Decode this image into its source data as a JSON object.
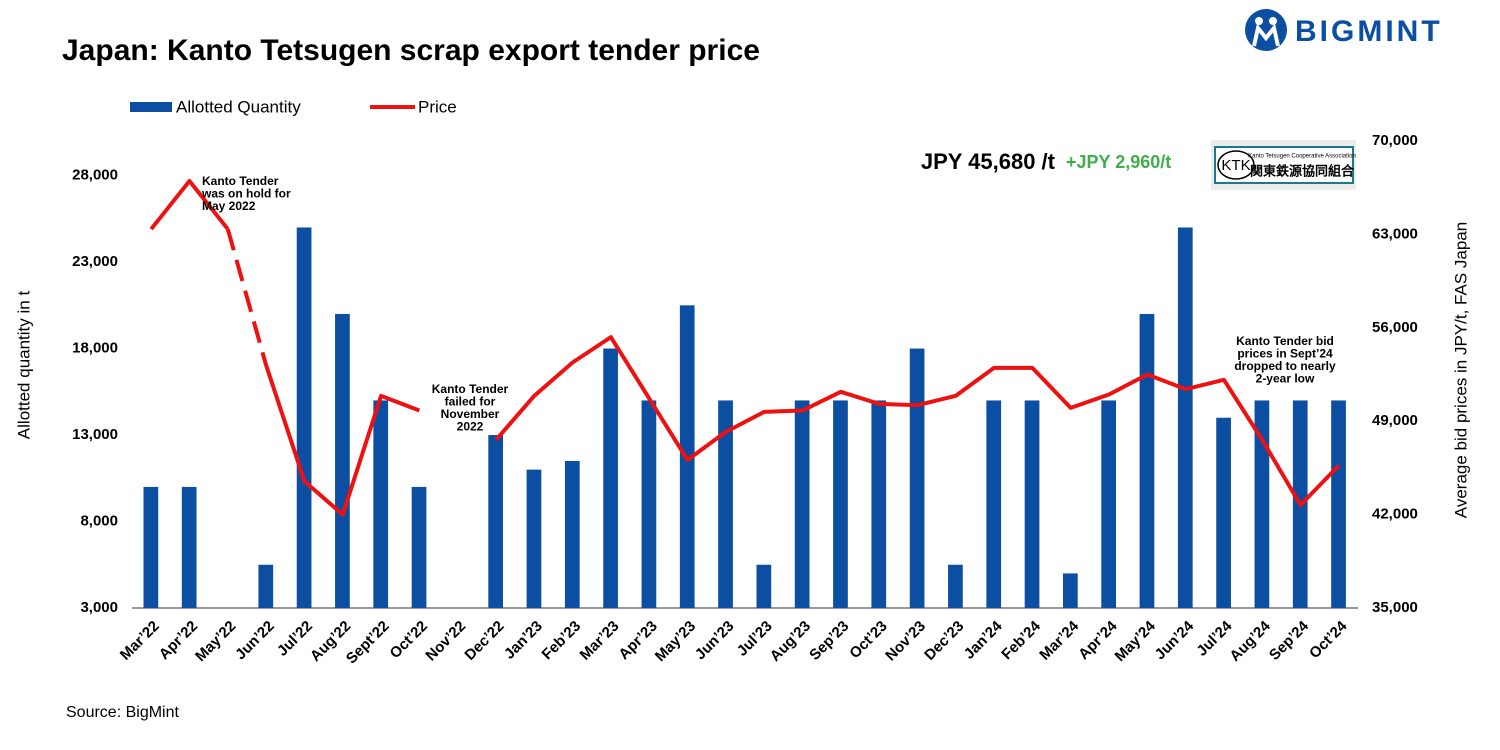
{
  "chart_data": {
    "type": "bar-line",
    "title": "Japan: Kanto Tetsugen scrap export tender price",
    "brand": "BIGMINT",
    "source": "Source: BigMint",
    "categories": [
      "Mar’22",
      "Apr’22",
      "May’22",
      "Jun’22",
      "Jul’22",
      "Aug’22",
      "Sept’22",
      "Oct’22",
      "Nov’22",
      "Dec’22",
      "Jan’23",
      "Feb’23",
      "Mar’23",
      "Apr’23",
      "May’23",
      "Jun’23",
      "Jul’23",
      "Aug’23",
      "Sep’23",
      "Oct’23",
      "Nov’23",
      "Dec’23",
      "Jan’24",
      "Feb’24",
      "Mar’24",
      "Apr’24",
      "May’24",
      "Jun’24",
      "Jul’24",
      "Aug’24",
      "Sep’24",
      "Oct’24"
    ],
    "series": [
      {
        "name": "Allotted Quantity",
        "color": "#0b4ea2",
        "type": "bar",
        "axis": "y",
        "values": [
          10000,
          10000,
          null,
          5500,
          25000,
          20000,
          15000,
          10000,
          null,
          13000,
          11000,
          11500,
          18000,
          15000,
          20500,
          15000,
          5500,
          15000,
          15000,
          15000,
          18000,
          5500,
          15000,
          15000,
          5000,
          15000,
          20000,
          25000,
          14000,
          15000,
          15000,
          15000
        ]
      },
      {
        "name": "Price",
        "color": "#ee1111",
        "type": "line",
        "axis": "y2",
        "values": [
          63400,
          67000,
          63400,
          53200,
          44500,
          42000,
          50900,
          49800,
          null,
          47600,
          50900,
          53400,
          55300,
          50700,
          46100,
          48200,
          49700,
          49800,
          51200,
          50300,
          50200,
          50900,
          53000,
          53000,
          50000,
          51000,
          52500,
          51400,
          52100,
          47600,
          42720,
          45680
        ],
        "dashed_segments": [
          [
            2,
            3
          ]
        ]
      }
    ],
    "ylabel": "Allotted quantity in t",
    "y2label": "Average bid prices in JPY/t, FAS Japan",
    "ylim": [
      3000,
      30000
    ],
    "yticks": [
      {
        "value": 3000,
        "label": "3,000"
      },
      {
        "value": 8000,
        "label": "8,000"
      },
      {
        "value": 13000,
        "label": "13,000"
      },
      {
        "value": 18000,
        "label": "18,000"
      },
      {
        "value": 23000,
        "label": "23,000"
      },
      {
        "value": 28000,
        "label": "28,000"
      }
    ],
    "y2lim": [
      35000,
      70000
    ],
    "y2ticks": [
      {
        "value": 35000,
        "label": "35,000"
      },
      {
        "value": 42000,
        "label": "42,000"
      },
      {
        "value": 49000,
        "label": "49,000"
      },
      {
        "value": 56000,
        "label": "56,000"
      },
      {
        "value": 63000,
        "label": "63,000"
      },
      {
        "value": 70000,
        "label": "70,000"
      }
    ],
    "grid": false,
    "legend": "top-left",
    "headline": {
      "price": "JPY 45,680 /t",
      "change": "+JPY 2,960/t"
    },
    "badge": {
      "mark": "KTK",
      "english": "Kanto Tetsugen Cooperative Association",
      "japanese": "関東鉄源協同組合"
    },
    "annotations": [
      {
        "lines": [
          "Kanto Tender",
          "was on hold for",
          "May 2022"
        ]
      },
      {
        "lines": [
          "Kanto Tender",
          "failed  for",
          "November",
          "2022"
        ]
      },
      {
        "lines": [
          "Kanto Tender bid",
          "prices in Sept’24",
          "dropped to nearly",
          "2-year low"
        ]
      }
    ]
  }
}
